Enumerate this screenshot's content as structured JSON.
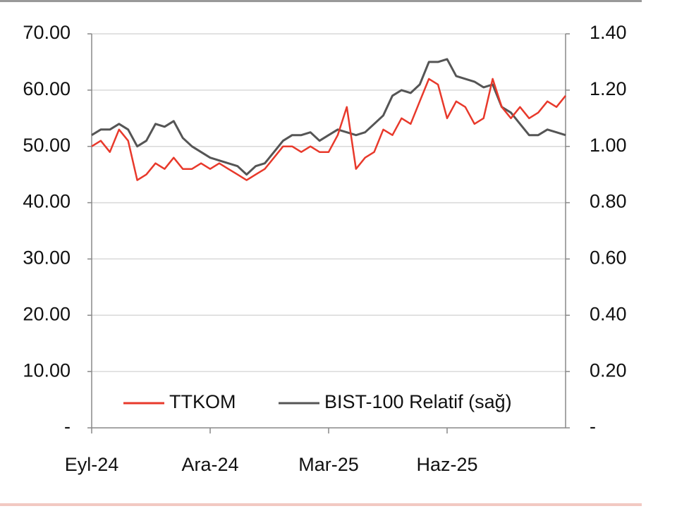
{
  "chart_data": {
    "type": "line",
    "categories": [
      "Eyl-24",
      null,
      null,
      null,
      null,
      null,
      null,
      null,
      null,
      null,
      null,
      null,
      null,
      "Ara-24",
      null,
      null,
      null,
      null,
      null,
      null,
      null,
      null,
      null,
      null,
      null,
      null,
      "Mar-25",
      null,
      null,
      null,
      null,
      null,
      null,
      null,
      null,
      null,
      null,
      null,
      null,
      "Haz-25",
      null,
      null,
      null,
      null,
      null,
      null,
      null,
      null,
      null,
      null,
      null,
      null,
      null
    ],
    "series": [
      {
        "name": "TTKOM",
        "color": "#e8392b",
        "values": [
          50,
          51,
          49,
          53,
          51,
          44,
          45,
          47,
          46,
          48,
          46,
          46,
          47,
          46,
          47,
          46,
          45,
          44,
          45,
          46,
          48,
          50,
          50,
          49,
          50,
          49,
          49,
          52,
          57,
          46,
          48,
          49,
          53,
          52,
          55,
          54,
          58,
          62,
          61,
          55,
          58,
          57,
          54,
          55,
          62,
          57,
          55,
          57,
          55,
          56,
          58,
          57,
          59
        ]
      },
      {
        "name": "BIST-100 Relatif (sağ)",
        "color": "#555555",
        "axis": "y2",
        "values": [
          1.04,
          1.06,
          1.06,
          1.08,
          1.06,
          1.0,
          1.02,
          1.08,
          1.07,
          1.09,
          1.03,
          1.0,
          0.98,
          0.96,
          0.95,
          0.94,
          0.93,
          0.9,
          0.93,
          0.94,
          0.98,
          1.02,
          1.04,
          1.04,
          1.05,
          1.02,
          1.04,
          1.06,
          1.05,
          1.04,
          1.05,
          1.08,
          1.11,
          1.18,
          1.2,
          1.19,
          1.22,
          1.3,
          1.3,
          1.31,
          1.25,
          1.24,
          1.23,
          1.21,
          1.22,
          1.14,
          1.12,
          1.08,
          1.04,
          1.04,
          1.06,
          1.05,
          1.04
        ]
      }
    ],
    "ylim": [
      0,
      70
    ],
    "yticks": [
      {
        "value": 0,
        "label": "-"
      },
      {
        "value": 10,
        "label": "10.00"
      },
      {
        "value": 20,
        "label": "20.00"
      },
      {
        "value": 30,
        "label": "30.00"
      },
      {
        "value": 40,
        "label": "40.00"
      },
      {
        "value": 50,
        "label": "50.00"
      },
      {
        "value": 60,
        "label": "60.00"
      },
      {
        "value": 70,
        "label": "70.00"
      }
    ],
    "y2lim": [
      0,
      1.4
    ],
    "y2ticks": [
      {
        "value": 0,
        "label": "-"
      },
      {
        "value": 0.2,
        "label": "0.20"
      },
      {
        "value": 0.4,
        "label": "0.40"
      },
      {
        "value": 0.6,
        "label": "0.60"
      },
      {
        "value": 0.8,
        "label": "0.80"
      },
      {
        "value": 1.0,
        "label": "1.00"
      },
      {
        "value": 1.2,
        "label": "1.20"
      },
      {
        "value": 1.4,
        "label": "1.40"
      }
    ],
    "grid": true,
    "legend": "bottom"
  }
}
